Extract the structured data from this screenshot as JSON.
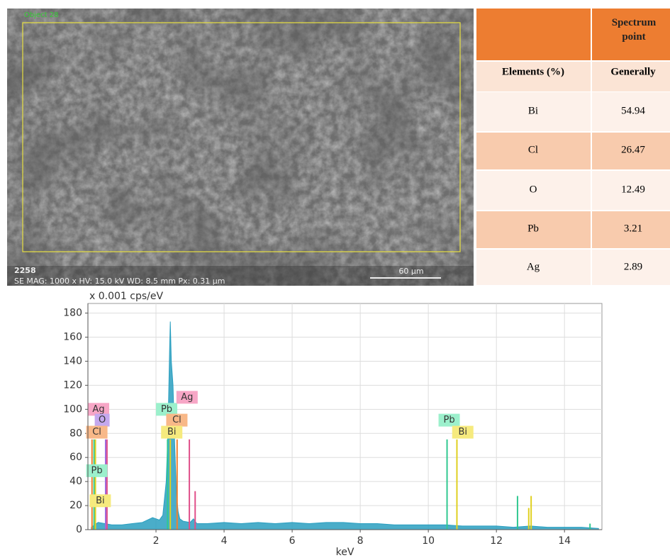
{
  "sem_image": {
    "object_label": "Object 28",
    "id": "2258",
    "info": "SE  MAG: 1000 x  HV: 15.0 kV  WD: 8.5 mm  Px: 0.31 µm",
    "scale": "60 µm"
  },
  "table": {
    "header": "Spectrum point",
    "subheader": [
      "Elements (%)",
      "Generally"
    ],
    "rows": [
      [
        "Bi",
        54.94
      ],
      [
        "Cl",
        26.47
      ],
      [
        "O",
        12.49
      ],
      [
        "Pb",
        3.21
      ],
      [
        "Ag",
        2.89
      ]
    ]
  },
  "chart_data": {
    "type": "area",
    "title": "x 0.001 cps/eV",
    "x_label": "keV",
    "color": "#2a9fc0",
    "x": [
      0.1,
      0.3,
      0.5,
      0.7,
      1.0,
      1.3,
      1.6,
      1.9,
      2.1,
      2.2,
      2.3,
      2.35,
      2.4,
      2.42,
      2.45,
      2.5,
      2.55,
      2.6,
      2.65,
      2.7,
      2.8,
      3.0,
      3.1,
      3.2,
      3.5,
      4.0,
      4.5,
      5.0,
      5.5,
      6.0,
      6.5,
      7.0,
      7.5,
      8.0,
      8.5,
      9.0,
      9.5,
      10.0,
      10.5,
      11.0,
      11.5,
      12.0,
      12.5,
      13.0,
      13.5,
      14.0,
      14.5,
      15.0
    ],
    "values": [
      2,
      6,
      5,
      4,
      4,
      5,
      6,
      10,
      8,
      12,
      40,
      80,
      150,
      173,
      140,
      120,
      70,
      30,
      15,
      9,
      7,
      6,
      9,
      5,
      5,
      6,
      5,
      6,
      5,
      6,
      5,
      6,
      6,
      5,
      5,
      4,
      4,
      4,
      4,
      3,
      3,
      3,
      2,
      3,
      2,
      2,
      2,
      1
    ],
    "xlim": [
      0,
      15.1
    ],
    "ylim": [
      0,
      188
    ],
    "xticks": [
      2,
      4,
      6,
      8,
      10,
      12,
      14
    ],
    "yticks": [
      0,
      20,
      40,
      60,
      80,
      100,
      120,
      140,
      160,
      180
    ],
    "grid": true,
    "peak_lines": [
      {
        "color": "#f08030",
        "x": 0.12,
        "height": 75
      },
      {
        "color": "#30c890",
        "x": 0.18,
        "height": 75
      },
      {
        "color": "#e0d020",
        "x": 0.22,
        "height": 75
      },
      {
        "color": "#9c6ade",
        "x": 0.52,
        "height": 75
      },
      {
        "color": "#e0508a",
        "x": 0.56,
        "height": 75
      },
      {
        "color": "#30c890",
        "x": 2.34,
        "height": 75
      },
      {
        "color": "#e0d020",
        "x": 2.42,
        "height": 75
      },
      {
        "color": "#f08030",
        "x": 2.62,
        "height": 75
      },
      {
        "color": "#e0508a",
        "x": 2.98,
        "height": 75
      },
      {
        "color": "#e0508a",
        "x": 3.15,
        "height": 32
      },
      {
        "color": "#30c890",
        "x": 10.55,
        "height": 75
      },
      {
        "color": "#e0d020",
        "x": 10.84,
        "height": 75
      },
      {
        "color": "#30c890",
        "x": 12.62,
        "height": 28
      },
      {
        "color": "#e0d020",
        "x": 12.95,
        "height": 18
      },
      {
        "color": "#e0d020",
        "x": 13.02,
        "height": 28
      },
      {
        "color": "#30c890",
        "x": 14.75,
        "height": 5
      }
    ],
    "peak_labels": [
      {
        "text": "Ag",
        "color": "#f7a6c6",
        "x": 0.0,
        "y": 100
      },
      {
        "text": "O",
        "color": "#c4a8ee",
        "x": 0.2,
        "y": 91
      },
      {
        "text": "Cl",
        "color": "#f8b888",
        "x": -0.05,
        "y": 81
      },
      {
        "text": "Pb",
        "color": "#9cf0cc",
        "x": -0.05,
        "y": 49
      },
      {
        "text": "Bi",
        "color": "#f6ea7e",
        "x": 0.05,
        "y": 24
      },
      {
        "text": "Pb",
        "color": "#9cf0cc",
        "x": 2.0,
        "y": 100
      },
      {
        "text": "Ag",
        "color": "#f7a6c6",
        "x": 2.6,
        "y": 110
      },
      {
        "text": "Cl",
        "color": "#f8b888",
        "x": 2.3,
        "y": 91
      },
      {
        "text": "Bi",
        "color": "#f6ea7e",
        "x": 2.15,
        "y": 81
      },
      {
        "text": "Pb",
        "color": "#9cf0cc",
        "x": 10.3,
        "y": 91
      },
      {
        "text": "Bi",
        "color": "#f6ea7e",
        "x": 10.7,
        "y": 81
      }
    ]
  }
}
